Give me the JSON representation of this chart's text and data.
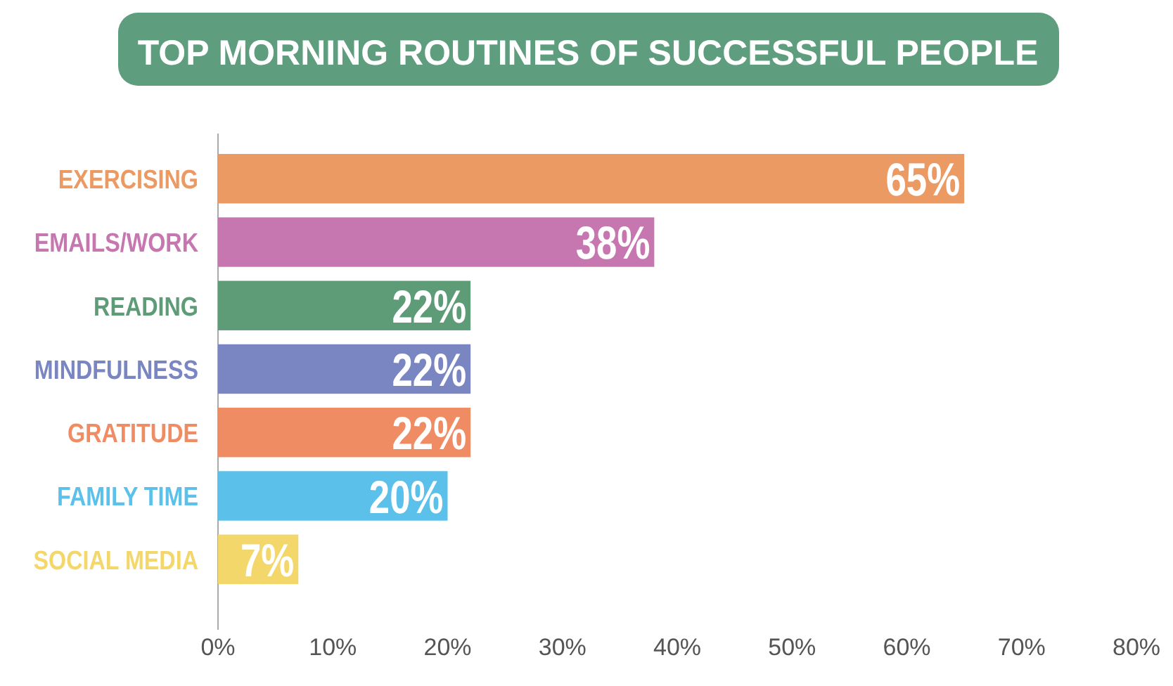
{
  "chart_data": {
    "type": "bar",
    "orientation": "horizontal",
    "title": "TOP MORNING ROUTINES OF SUCCESSFUL PEOPLE",
    "categories": [
      "EXERCISING",
      "EMAILS/WORK",
      "READING",
      "MINDFULNESS",
      "GRATITUDE",
      "FAMILY TIME",
      "SOCIAL MEDIA"
    ],
    "values": [
      65,
      38,
      22,
      22,
      22,
      20,
      7
    ],
    "colors": [
      "#eb9a64",
      "#c677b0",
      "#5e9c78",
      "#7a86c2",
      "#ef8c63",
      "#5bc1ea",
      "#f4d76a"
    ],
    "value_labels": [
      "65%",
      "38%",
      "22%",
      "22%",
      "22%",
      "20%",
      "7%"
    ],
    "xlim": [
      0,
      80
    ],
    "xticks": [
      {
        "value": 0,
        "label": "0%"
      },
      {
        "value": 10,
        "label": "10%"
      },
      {
        "value": 20,
        "label": "20%"
      },
      {
        "value": 30,
        "label": "30%"
      },
      {
        "value": 40,
        "label": "40%"
      },
      {
        "value": 50,
        "label": "50%"
      },
      {
        "value": 60,
        "label": "60%"
      },
      {
        "value": 70,
        "label": "70%"
      },
      {
        "value": 80,
        "label": "80%"
      }
    ],
    "grid": false
  }
}
